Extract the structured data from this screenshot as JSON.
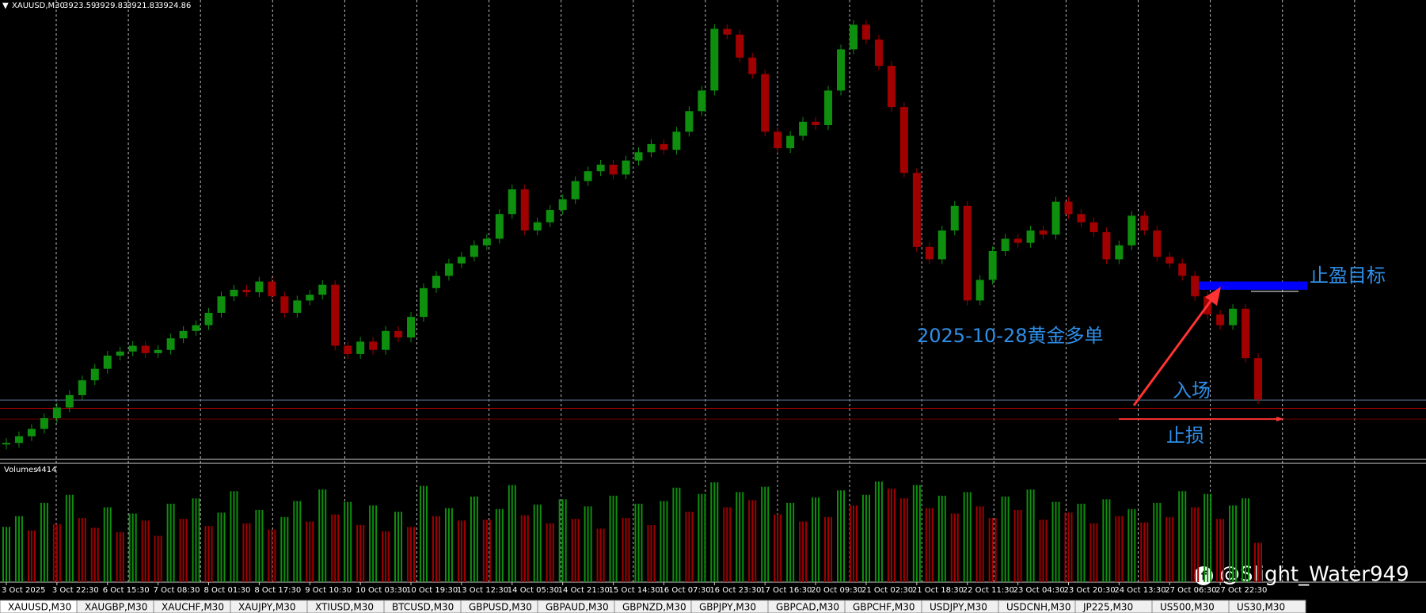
{
  "chart_data": {
    "type": "candlestick",
    "symbol": "XAUUSD,M30",
    "open": 3923.59,
    "high": 3929.83,
    "low": 3921.83,
    "close": 3924.86,
    "up_color": "#0e8f0e",
    "down_color": "#a00000",
    "ylim": [
      3852,
      4410
    ],
    "values": [
      3872,
      3880,
      3889,
      3902,
      3915,
      3930,
      3948,
      3962,
      3978,
      3983,
      3990,
      3981,
      3985,
      3999,
      4008,
      4015,
      4030,
      4050,
      4058,
      4055,
      4068,
      4050,
      4030,
      4045,
      4052,
      4064,
      3990,
      3980,
      3995,
      3985,
      4008,
      4000,
      4025,
      4060,
      4075,
      4090,
      4098,
      4112,
      4120,
      4150,
      4180,
      4130,
      4140,
      4155,
      4168,
      4190,
      4202,
      4210,
      4198,
      4215,
      4225,
      4235,
      4228,
      4250,
      4275,
      4300,
      4375,
      4368,
      4340,
      4320,
      4250,
      4230,
      4245,
      4262,
      4258,
      4300,
      4350,
      4380,
      4362,
      4330,
      4280,
      4200,
      4110,
      4095,
      4130,
      4160,
      4045,
      4070,
      4105,
      4120,
      4115,
      4130,
      4125,
      4165,
      4150,
      4140,
      4128,
      4095,
      4112,
      4148,
      4130,
      4098,
      4090,
      4075,
      4050,
      4028,
      4015,
      4035,
      3975,
      3924.86
    ],
    "xticks": [
      {
        "value": 0,
        "label": "3 Oct 2025"
      },
      {
        "value": 4,
        "label": "3 Oct 22:30"
      },
      {
        "value": 8,
        "label": "6 Oct 15:30"
      },
      {
        "value": 12,
        "label": "7 Oct 08:30"
      },
      {
        "value": 16,
        "label": "8 Oct 01:30"
      },
      {
        "value": 20,
        "label": "8 Oct 17:30"
      },
      {
        "value": 24,
        "label": "9 Oct 10:30"
      },
      {
        "value": 28,
        "label": "10 Oct 03:30"
      },
      {
        "value": 32,
        "label": "10 Oct 19:30"
      },
      {
        "value": 36,
        "label": "13 Oct 12:30"
      },
      {
        "value": 40,
        "label": "14 Oct 05:30"
      },
      {
        "value": 44,
        "label": "14 Oct 21:30"
      },
      {
        "value": 48,
        "label": "15 Oct 14:30"
      },
      {
        "value": 52,
        "label": "16 Oct 07:30"
      },
      {
        "value": 56,
        "label": "16 Oct 23:30"
      },
      {
        "value": 60,
        "label": "17 Oct 16:30"
      },
      {
        "value": 64,
        "label": "20 Oct 09:30"
      },
      {
        "value": 68,
        "label": "21 Oct 02:30"
      },
      {
        "value": 72,
        "label": "21 Oct 18:30"
      },
      {
        "value": 76,
        "label": "22 Oct 11:30"
      },
      {
        "value": 80,
        "label": "23 Oct 04:30"
      },
      {
        "value": 84,
        "label": "23 Oct 20:30"
      },
      {
        "value": 88,
        "label": "24 Oct 13:30"
      },
      {
        "value": 92,
        "label": "27 Oct 06:30"
      },
      {
        "value": 96,
        "label": "27 Oct 22:30"
      }
    ],
    "levels": [
      {
        "value": 3924,
        "color": "#5a7a9a"
      },
      {
        "value": 3914,
        "color": "#c00000"
      },
      {
        "value": 3901,
        "color": "#700000"
      }
    ],
    "target": [
      4058,
      4068
    ],
    "target_color": "#0000ff",
    "volume_label": "Volumes",
    "vlim": [
      0,
      12000
    ],
    "volumes": [
      6200,
      7400,
      5800,
      8900,
      6500,
      9800,
      7200,
      6100,
      8400,
      5600,
      7700,
      6900,
      5200,
      8800,
      7100,
      9400,
      6300,
      7800,
      10200,
      6600,
      8100,
      5900,
      7300,
      9100,
      6800,
      10400,
      7600,
      9000,
      6400,
      8600,
      5700,
      7900,
      6200,
      10800,
      7400,
      8300,
      6900,
      9600,
      7000,
      8200,
      10900,
      7500,
      8700,
      6600,
      9300,
      7100,
      8500,
      6000,
      9700,
      7200,
      8800,
      6400,
      9100,
      10600,
      7900,
      9900,
      11200,
      8400,
      10100,
      9200,
      10700,
      7600,
      8900,
      6800,
      9500,
      7300,
      10300,
      8600,
      9800,
      11300,
      10500,
      9400,
      10900,
      8300,
      9700,
      7700,
      10100,
      8500,
      7200,
      9600,
      8100,
      10400,
      7000,
      9000,
      7800,
      8800,
      6600,
      9300,
      7400,
      8200,
      6700,
      8900,
      7300,
      10200,
      8400,
      9900,
      7100,
      8600,
      9400,
      4414
    ],
    "annotations": {
      "take_profit": "止盈目标",
      "order": "2025-10-28黄金多单",
      "entry": "入场",
      "stop": "止损"
    },
    "watermark": "@Slight_Water949"
  },
  "tabs": [
    "XAUUSD,M30",
    "XAUGBP,M30",
    "XAUCHF,M30",
    "XAUJPY,M30",
    "XTIUSD,M30",
    "BTCUSD,M30",
    "GBPUSD,M30",
    "GBPAUD,M30",
    "GBPNZD,M30",
    "GBPJPY,M30",
    "GBPCAD,M30",
    "GBPCHF,M30",
    "USDJPY,M30",
    "USDCNH,M30",
    "JP225,M30",
    "US500,M30",
    "US30,M30"
  ]
}
